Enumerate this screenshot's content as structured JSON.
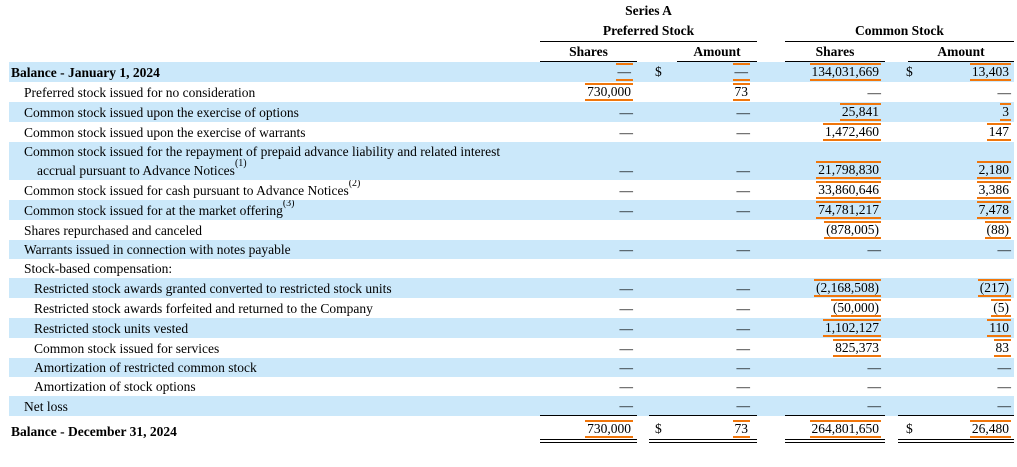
{
  "table": {
    "preferred_group": {
      "line1": "Series A",
      "line2": "Preferred Stock"
    },
    "common_group": {
      "line2": "Common Stock"
    },
    "col_headers": {
      "shares": "Shares",
      "amount": "Amount"
    },
    "rows": [
      {
        "label": "Balance - January 1, 2024",
        "bold": true,
        "indent": 0,
        "shaded": true,
        "ps": {
          "v": "—",
          "m": true
        },
        "pa": {
          "d": "$",
          "v": "—",
          "m": true
        },
        "cs": {
          "v": "134,031,669",
          "m": true
        },
        "ca": {
          "d": "$",
          "v": "13,403",
          "m": true
        }
      },
      {
        "label": "Preferred stock issued for no consideration",
        "indent": 1,
        "ps": {
          "v": "730,000",
          "m": true
        },
        "pa": {
          "v": "73",
          "m": true
        },
        "cs": {
          "v": "—"
        },
        "ca": {
          "v": "—"
        }
      },
      {
        "label": "Common stock issued upon the exercise of options",
        "indent": 1,
        "shaded": true,
        "ps": {
          "v": "—"
        },
        "pa": {
          "v": "—"
        },
        "cs": {
          "v": "25,841",
          "m": true
        },
        "ca": {
          "v": "3",
          "m": true
        }
      },
      {
        "label": "Common stock issued upon the exercise of warrants",
        "indent": 1,
        "ps": {
          "v": "—"
        },
        "pa": {
          "v": "—"
        },
        "cs": {
          "v": "1,472,460",
          "m": true
        },
        "ca": {
          "v": "147",
          "m": true
        }
      },
      {
        "label": "Common stock issued for the repayment of prepaid advance liability and related interest accrual pursuant to Advance Notices",
        "sup": "(1)",
        "indent": 1,
        "shaded": true,
        "ps": {
          "v": "—"
        },
        "pa": {
          "v": "—"
        },
        "cs": {
          "v": "21,798,830",
          "m": true
        },
        "ca": {
          "v": "2,180",
          "m": true
        }
      },
      {
        "label": "Common stock issued for cash pursuant to Advance Notices",
        "sup": "(2)",
        "indent": 1,
        "ps": {
          "v": "—"
        },
        "pa": {
          "v": "—"
        },
        "cs": {
          "v": "33,860,646",
          "m": true
        },
        "ca": {
          "v": "3,386",
          "m": true
        }
      },
      {
        "label": "Common stock issued for at the market offering",
        "sup": "(3)",
        "indent": 1,
        "shaded": true,
        "ps": {
          "v": "—"
        },
        "pa": {
          "v": "—"
        },
        "cs": {
          "v": "74,781,217",
          "m": true
        },
        "ca": {
          "v": "7,478",
          "m": true
        }
      },
      {
        "label": "Shares repurchased and canceled",
        "indent": 1,
        "cs": {
          "v": "(878,005)",
          "m": true
        },
        "ca": {
          "v": "(88)",
          "m": true
        }
      },
      {
        "label": "Warrants issued in connection with notes payable",
        "indent": 1,
        "shaded": true,
        "ps": {
          "v": "—"
        },
        "pa": {
          "v": "—"
        },
        "cs": {
          "v": "—"
        },
        "ca": {
          "v": "—"
        }
      },
      {
        "label": "Stock-based compensation:",
        "indent": 1
      },
      {
        "label": "Restricted stock awards granted converted to restricted stock units",
        "indent": 2,
        "shaded": true,
        "ps": {
          "v": "—"
        },
        "pa": {
          "v": "—"
        },
        "cs": {
          "v": "(2,168,508)",
          "m": true
        },
        "ca": {
          "v": "(217)",
          "m": true
        }
      },
      {
        "label": "Restricted stock awards forfeited and returned to the Company",
        "indent": 2,
        "ps": {
          "v": "—"
        },
        "pa": {
          "v": "—"
        },
        "cs": {
          "v": "(50,000)",
          "m": true
        },
        "ca": {
          "v": "(5)",
          "m": true
        }
      },
      {
        "label": "Restricted stock units vested",
        "indent": 2,
        "shaded": true,
        "ps": {
          "v": "—"
        },
        "pa": {
          "v": "—"
        },
        "cs": {
          "v": "1,102,127",
          "m": true
        },
        "ca": {
          "v": "110",
          "m": true
        }
      },
      {
        "label": "Common stock issued for services",
        "indent": 2,
        "ps": {
          "v": "—"
        },
        "pa": {
          "v": "—"
        },
        "cs": {
          "v": "825,373",
          "m": true
        },
        "ca": {
          "v": "83",
          "m": true
        }
      },
      {
        "label": "Amortization of restricted common stock",
        "indent": 2,
        "shaded": true,
        "ps": {
          "v": "—"
        },
        "pa": {
          "v": "—"
        },
        "cs": {
          "v": "—"
        },
        "ca": {
          "v": "—"
        }
      },
      {
        "label": "Amortization of stock options",
        "indent": 2,
        "ps": {
          "v": "—"
        },
        "pa": {
          "v": "—"
        },
        "cs": {
          "v": "—"
        },
        "ca": {
          "v": "—"
        }
      },
      {
        "label": "Net loss",
        "indent": 1,
        "shaded": true,
        "ps": {
          "v": "—"
        },
        "pa": {
          "v": "—"
        },
        "cs": {
          "v": "—"
        },
        "ca": {
          "v": "—"
        }
      },
      {
        "label": "Balance - December 31, 2024",
        "bold": true,
        "indent": 0,
        "total": true,
        "ps": {
          "v": "730,000",
          "m": true
        },
        "pa": {
          "d": "$",
          "v": "73",
          "m": true
        },
        "cs": {
          "v": "264,801,650",
          "m": true
        },
        "ca": {
          "d": "$",
          "v": "26,480",
          "m": true
        }
      }
    ]
  },
  "colors": {
    "row_highlight": "#cbe8fa",
    "annotation_orange": "#f0760b",
    "text": "#000000",
    "background": "#ffffff"
  }
}
